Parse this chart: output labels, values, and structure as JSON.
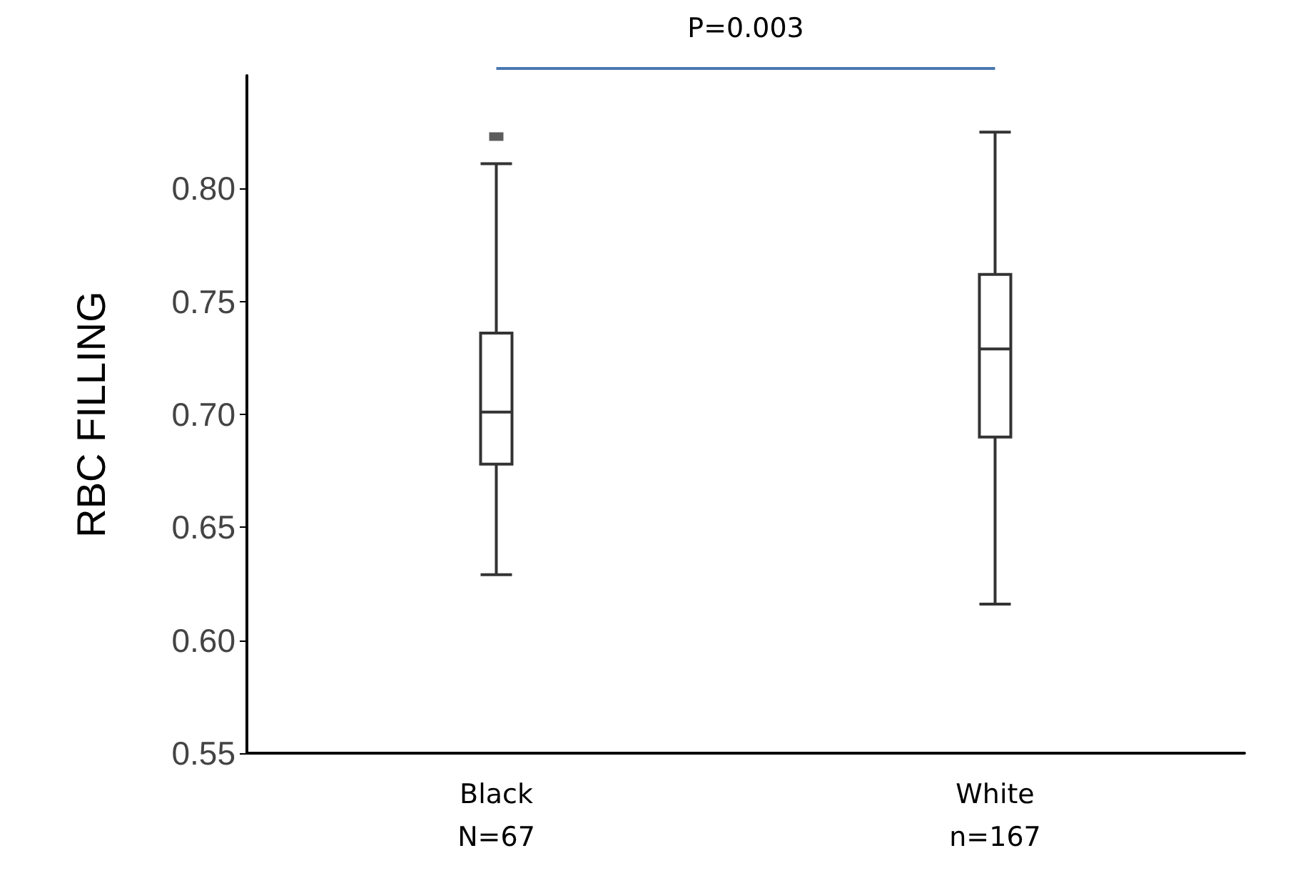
{
  "chart_data": {
    "type": "box",
    "ylabel": "RBC FILLING",
    "categories": [
      "Black\nN=67",
      "White\nn=167"
    ],
    "boxes": [
      {
        "low": 0.629,
        "q1": 0.678,
        "median": 0.701,
        "q3": 0.736,
        "high": 0.811,
        "outliers": [
          0.823
        ]
      },
      {
        "low": 0.616,
        "q1": 0.69,
        "median": 0.729,
        "q3": 0.762,
        "high": 0.825
      }
    ],
    "ylim": [
      0.55,
      0.85
    ],
    "yticks": [
      0.55,
      {
        "value": 0.6,
        "label": "0.60"
      },
      0.65,
      {
        "value": 0.7,
        "label": "0.70"
      },
      0.75,
      {
        "value": 0.8,
        "label": "0.80"
      }
    ],
    "grid": false,
    "annotations": [
      "P=0.003"
    ]
  }
}
